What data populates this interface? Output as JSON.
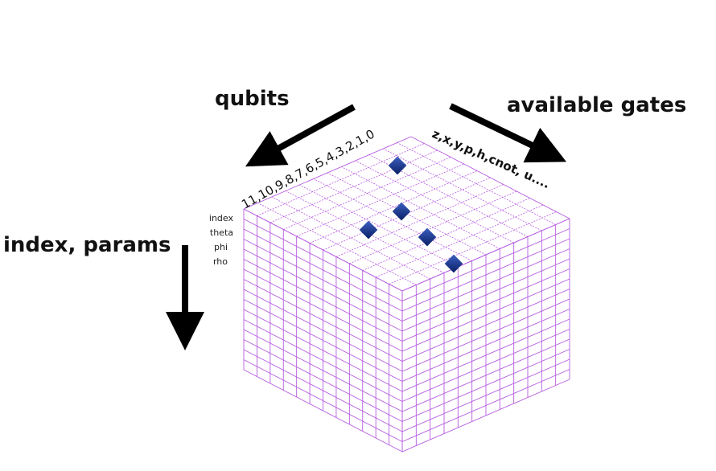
{
  "labels": {
    "qubits": "qubits",
    "gates": "available gates",
    "index_params": "index, params",
    "qubit_indices": "11,10,9,8,7,6,5,4,3,2,1,0",
    "gate_list": "z,x,y,p,h,cnot, u....",
    "params": [
      "index",
      "theta",
      "phi",
      "rho"
    ]
  }
}
